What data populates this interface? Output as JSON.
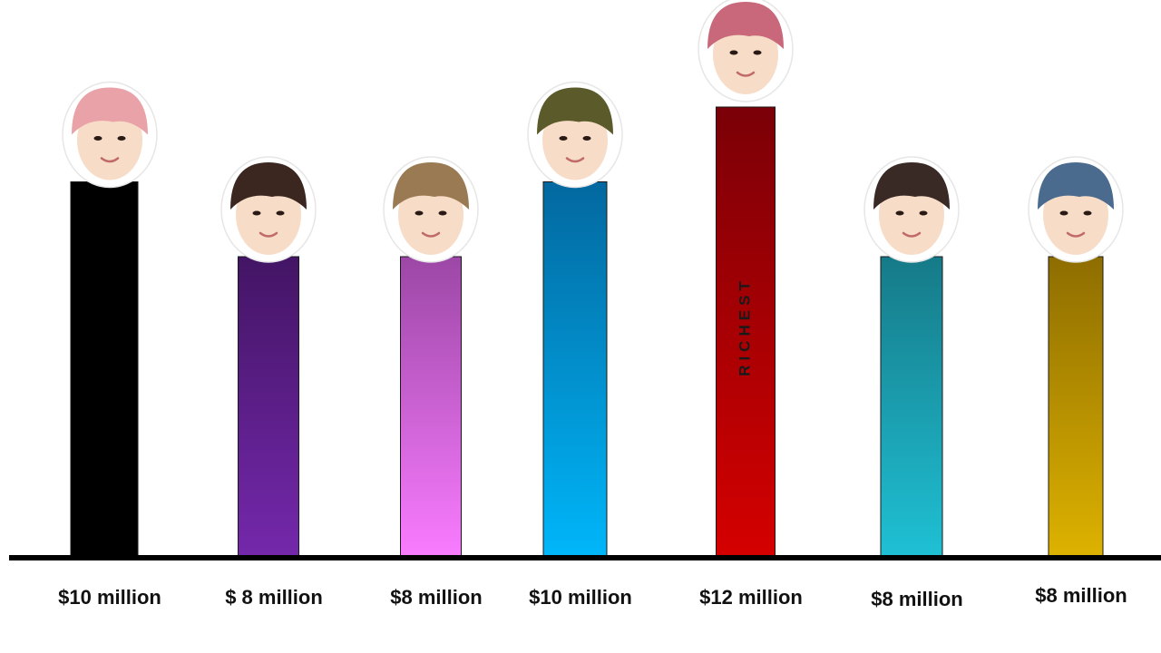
{
  "chart_data": {
    "type": "bar",
    "categories": [
      "$10 million",
      "$ 8 million",
      "$8 million",
      "$10 million",
      "$12 million",
      "$8 million",
      "$8 million"
    ],
    "values": [
      10,
      8,
      8,
      10,
      12,
      8,
      8
    ],
    "ylim": [
      0,
      12
    ],
    "grid": false,
    "legend": "none",
    "bar_colors": [
      {
        "top": "#000000",
        "bottom": "#000000"
      },
      {
        "top": "#431565",
        "bottom": "#7428ab"
      },
      {
        "top": "#9c47a6",
        "bottom": "#f97cff"
      },
      {
        "top": "#03689f",
        "bottom": "#00b6f9"
      },
      {
        "top": "#7a0007",
        "bottom": "#d50000"
      },
      {
        "top": "#167a88",
        "bottom": "#1fc0d4"
      },
      {
        "top": "#8e6d00",
        "bottom": "#ddb200"
      }
    ],
    "annotations": [
      {
        "bar_index": 4,
        "text": "RICHEST"
      }
    ],
    "icons": [
      "avatar-face-1",
      "avatar-face-2",
      "avatar-face-3",
      "avatar-face-4",
      "avatar-face-5",
      "avatar-face-6",
      "avatar-face-7"
    ],
    "hair_colors": [
      "#e9a3a8",
      "#3b2620",
      "#9a7a52",
      "#5a5a2a",
      "#c8687a",
      "#3a2a26",
      "#4a6a8e"
    ],
    "skin_color": "#f7dcc8"
  }
}
